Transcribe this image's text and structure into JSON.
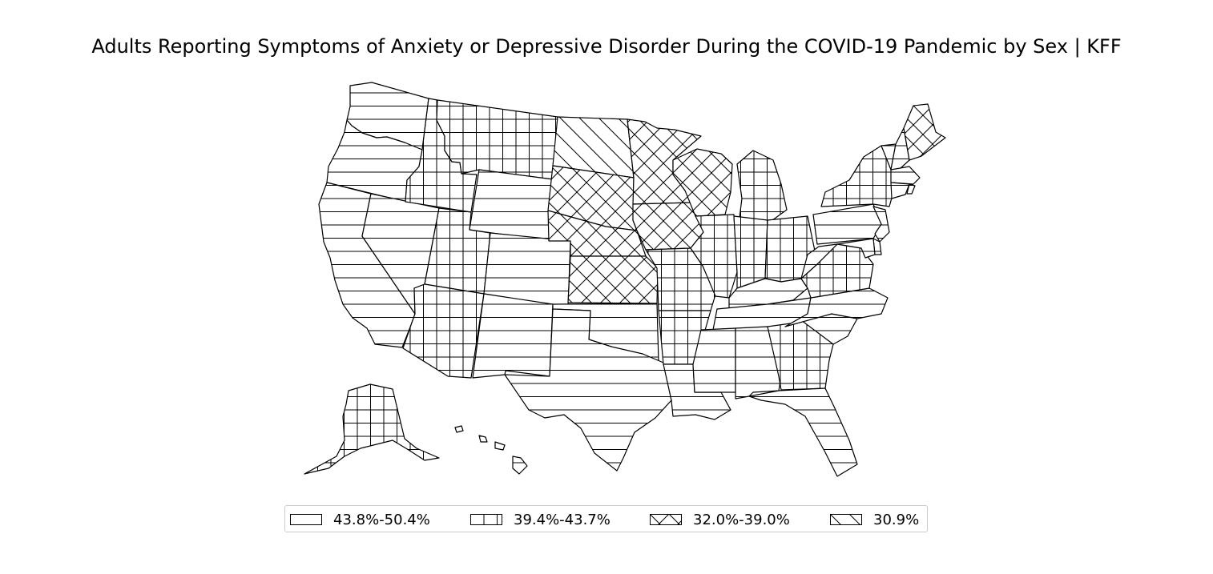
{
  "title": "Adults Reporting Symptoms of Anxiety or Depressive Disorder During the COVID-19 Pandemic by Sex | KFF",
  "legend": {
    "items": [
      {
        "label": "43.8%-50.4%",
        "pattern": "horizontal"
      },
      {
        "label": "39.4%-43.7%",
        "pattern": "grid"
      },
      {
        "label": "32.0%-39.0%",
        "pattern": "crosshatch"
      },
      {
        "label": "30.9%",
        "pattern": "diagonal"
      }
    ]
  },
  "colors": {
    "stroke": "#000000",
    "background": "#ffffff",
    "legend_border": "#cccccc"
  },
  "regions": [
    {
      "name": "Washington",
      "pattern": "horizontal"
    },
    {
      "name": "Oregon",
      "pattern": "horizontal"
    },
    {
      "name": "California",
      "pattern": "horizontal"
    },
    {
      "name": "Nevada",
      "pattern": "horizontal"
    },
    {
      "name": "Idaho",
      "pattern": "grid"
    },
    {
      "name": "Montana",
      "pattern": "grid"
    },
    {
      "name": "Wyoming",
      "pattern": "horizontal"
    },
    {
      "name": "Utah",
      "pattern": "grid"
    },
    {
      "name": "Colorado",
      "pattern": "horizontal"
    },
    {
      "name": "Arizona",
      "pattern": "grid"
    },
    {
      "name": "New Mexico",
      "pattern": "horizontal"
    },
    {
      "name": "North Dakota",
      "pattern": "diagonal"
    },
    {
      "name": "South Dakota",
      "pattern": "crosshatch"
    },
    {
      "name": "Nebraska",
      "pattern": "crosshatch"
    },
    {
      "name": "Kansas",
      "pattern": "crosshatch"
    },
    {
      "name": "Oklahoma",
      "pattern": "horizontal"
    },
    {
      "name": "Texas",
      "pattern": "horizontal"
    },
    {
      "name": "Minnesota",
      "pattern": "crosshatch"
    },
    {
      "name": "Iowa",
      "pattern": "crosshatch"
    },
    {
      "name": "Missouri",
      "pattern": "grid"
    },
    {
      "name": "Arkansas",
      "pattern": "grid"
    },
    {
      "name": "Louisiana",
      "pattern": "horizontal"
    },
    {
      "name": "Wisconsin",
      "pattern": "crosshatch"
    },
    {
      "name": "Illinois",
      "pattern": "grid"
    },
    {
      "name": "Michigan",
      "pattern": "grid"
    },
    {
      "name": "Indiana",
      "pattern": "grid"
    },
    {
      "name": "Ohio",
      "pattern": "grid"
    },
    {
      "name": "Kentucky",
      "pattern": "horizontal"
    },
    {
      "name": "Tennessee",
      "pattern": "horizontal"
    },
    {
      "name": "Mississippi",
      "pattern": "horizontal"
    },
    {
      "name": "Alabama",
      "pattern": "horizontal"
    },
    {
      "name": "Georgia",
      "pattern": "grid"
    },
    {
      "name": "Florida",
      "pattern": "horizontal"
    },
    {
      "name": "South Carolina",
      "pattern": "horizontal"
    },
    {
      "name": "North Carolina",
      "pattern": "horizontal"
    },
    {
      "name": "Virginia",
      "pattern": "grid"
    },
    {
      "name": "West Virginia",
      "pattern": "horizontal"
    },
    {
      "name": "Pennsylvania",
      "pattern": "horizontal"
    },
    {
      "name": "New York",
      "pattern": "grid"
    },
    {
      "name": "Vermont",
      "pattern": "horizontal"
    },
    {
      "name": "New Hampshire",
      "pattern": "horizontal"
    },
    {
      "name": "Maine",
      "pattern": "crosshatch"
    },
    {
      "name": "Massachusetts",
      "pattern": "horizontal"
    },
    {
      "name": "Connecticut",
      "pattern": "horizontal"
    },
    {
      "name": "Rhode Island",
      "pattern": "horizontal"
    },
    {
      "name": "New Jersey",
      "pattern": "horizontal"
    },
    {
      "name": "Delaware",
      "pattern": "horizontal"
    },
    {
      "name": "Maryland",
      "pattern": "horizontal"
    },
    {
      "name": "Alaska",
      "pattern": "grid"
    },
    {
      "name": "Hawaii",
      "pattern": "horizontal"
    }
  ]
}
